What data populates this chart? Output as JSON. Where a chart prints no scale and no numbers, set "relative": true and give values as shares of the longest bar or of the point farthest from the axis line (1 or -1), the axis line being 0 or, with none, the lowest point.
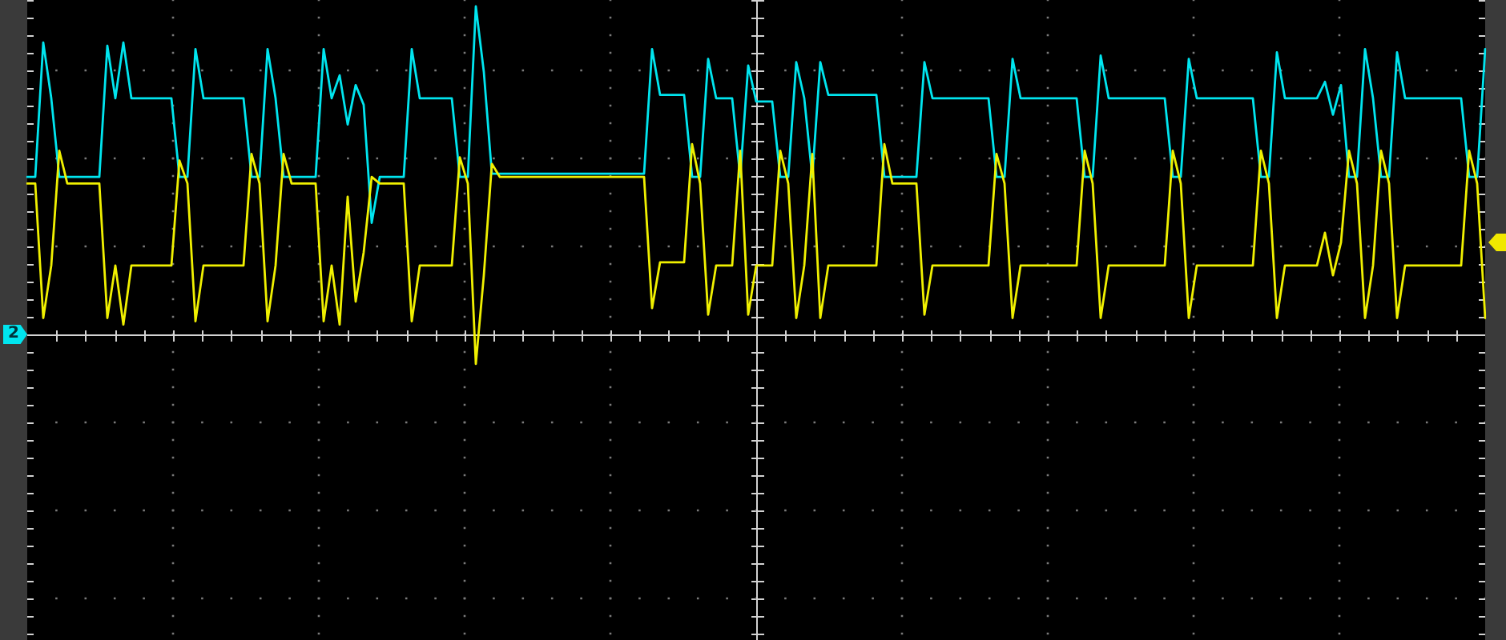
{
  "chart_data": {
    "type": "line",
    "relative": true,
    "grid": true,
    "line_style": "solid",
    "categories": [
      null,
      null,
      null,
      null,
      null,
      null,
      null,
      null,
      null,
      null,
      null,
      null,
      null,
      null,
      null,
      null,
      null,
      null,
      null,
      null,
      null,
      null,
      null,
      null,
      null,
      null,
      null,
      null,
      null,
      null,
      null,
      null,
      null,
      null,
      null,
      null,
      null,
      null,
      null,
      null,
      null,
      null,
      null,
      null,
      null,
      null,
      null,
      null,
      null,
      null,
      null,
      null,
      null,
      null,
      null,
      null,
      null,
      null,
      null,
      null,
      null,
      null,
      null,
      null,
      null,
      null,
      null,
      null,
      null,
      null,
      null,
      null,
      null,
      null,
      null,
      null,
      null,
      null,
      null,
      null,
      null,
      null,
      null,
      null,
      null,
      null,
      null,
      null,
      null,
      null,
      null,
      null,
      null,
      null,
      null,
      null,
      null,
      null,
      null,
      null,
      null,
      null,
      null,
      null,
      null,
      null,
      null,
      null,
      null,
      null,
      null,
      null,
      null,
      null,
      null,
      null,
      null,
      null,
      null,
      null,
      null,
      null,
      null,
      null,
      null,
      null,
      null,
      null,
      null,
      null,
      null,
      null,
      null,
      null,
      null,
      null,
      null,
      null,
      null,
      null,
      null,
      null,
      null,
      null,
      null,
      null,
      null,
      null,
      null,
      null,
      null,
      null,
      null,
      null,
      null,
      null,
      null,
      null,
      null,
      null,
      null,
      null,
      null,
      null,
      null,
      null,
      null,
      null,
      null,
      null,
      null,
      null,
      null,
      null,
      null,
      null,
      null,
      null,
      null,
      null,
      null,
      null,
      null
    ],
    "series": [
      {
        "color": "#00e5ef",
        "values": [
          0.48,
          0.48,
          0.89,
          0.72,
          0.48,
          0.48,
          0.48,
          0.48,
          0.48,
          0.48,
          0.88,
          0.72,
          0.89,
          0.72,
          0.72,
          0.72,
          0.72,
          0.72,
          0.72,
          0.48,
          0.48,
          0.87,
          0.72,
          0.72,
          0.72,
          0.72,
          0.72,
          0.72,
          0.48,
          0.48,
          0.87,
          0.72,
          0.48,
          0.48,
          0.48,
          0.48,
          0.48,
          0.87,
          0.72,
          0.79,
          0.64,
          0.76,
          0.7,
          0.34,
          0.48,
          0.48,
          0.48,
          0.48,
          0.87,
          0.72,
          0.72,
          0.72,
          0.72,
          0.72,
          0.48,
          0.48,
          1,
          0.8,
          0.49,
          0.49,
          0.49,
          0.49,
          0.49,
          0.49,
          0.49,
          0.49,
          0.49,
          0.49,
          0.49,
          0.49,
          0.49,
          0.49,
          0.49,
          0.49,
          0.49,
          0.49,
          0.49,
          0.49,
          0.87,
          0.73,
          0.73,
          0.73,
          0.73,
          0.48,
          0.48,
          0.84,
          0.72,
          0.72,
          0.72,
          0.48,
          0.82,
          0.71,
          0.71,
          0.71,
          0.48,
          0.48,
          0.83,
          0.72,
          0.48,
          0.83,
          0.73,
          0.73,
          0.73,
          0.73,
          0.73,
          0.73,
          0.73,
          0.48,
          0.48,
          0.48,
          0.48,
          0.48,
          0.83,
          0.72,
          0.72,
          0.72,
          0.72,
          0.72,
          0.72,
          0.72,
          0.72,
          0.48,
          0.48,
          0.84,
          0.72,
          0.72,
          0.72,
          0.72,
          0.72,
          0.72,
          0.72,
          0.72,
          0.48,
          0.48,
          0.85,
          0.72,
          0.72,
          0.72,
          0.72,
          0.72,
          0.72,
          0.72,
          0.72,
          0.48,
          0.48,
          0.84,
          0.72,
          0.72,
          0.72,
          0.72,
          0.72,
          0.72,
          0.72,
          0.72,
          0.48,
          0.48,
          0.86,
          0.72,
          0.72,
          0.72,
          0.72,
          0.72,
          0.77,
          0.67,
          0.76,
          0.48,
          0.48,
          0.87,
          0.72,
          0.48,
          0.48,
          0.86,
          0.72,
          0.72,
          0.72,
          0.72,
          0.72,
          0.72,
          0.72,
          0.72,
          0.48,
          0.48,
          0.87
        ]
      },
      {
        "color": "#f0f000",
        "values": [
          0.46,
          0.46,
          0.05,
          0.21,
          0.56,
          0.46,
          0.46,
          0.46,
          0.46,
          0.46,
          0.05,
          0.21,
          0.03,
          0.21,
          0.21,
          0.21,
          0.21,
          0.21,
          0.21,
          0.53,
          0.46,
          0.04,
          0.21,
          0.21,
          0.21,
          0.21,
          0.21,
          0.21,
          0.55,
          0.46,
          0.04,
          0.21,
          0.55,
          0.46,
          0.46,
          0.46,
          0.46,
          0.04,
          0.21,
          0.03,
          0.42,
          0.1,
          0.25,
          0.48,
          0.46,
          0.46,
          0.46,
          0.46,
          0.04,
          0.21,
          0.21,
          0.21,
          0.21,
          0.21,
          0.54,
          0.46,
          -0.09,
          0.18,
          0.52,
          0.48,
          0.48,
          0.48,
          0.48,
          0.48,
          0.48,
          0.48,
          0.48,
          0.48,
          0.48,
          0.48,
          0.48,
          0.48,
          0.48,
          0.48,
          0.48,
          0.48,
          0.48,
          0.48,
          0.08,
          0.22,
          0.22,
          0.22,
          0.22,
          0.58,
          0.46,
          0.06,
          0.21,
          0.21,
          0.21,
          0.56,
          0.06,
          0.21,
          0.21,
          0.21,
          0.56,
          0.46,
          0.05,
          0.21,
          0.55,
          0.05,
          0.21,
          0.21,
          0.21,
          0.21,
          0.21,
          0.21,
          0.21,
          0.58,
          0.46,
          0.46,
          0.46,
          0.46,
          0.06,
          0.21,
          0.21,
          0.21,
          0.21,
          0.21,
          0.21,
          0.21,
          0.21,
          0.55,
          0.46,
          0.05,
          0.21,
          0.21,
          0.21,
          0.21,
          0.21,
          0.21,
          0.21,
          0.21,
          0.56,
          0.46,
          0.05,
          0.21,
          0.21,
          0.21,
          0.21,
          0.21,
          0.21,
          0.21,
          0.21,
          0.56,
          0.46,
          0.05,
          0.21,
          0.21,
          0.21,
          0.21,
          0.21,
          0.21,
          0.21,
          0.21,
          0.56,
          0.46,
          0.05,
          0.21,
          0.21,
          0.21,
          0.21,
          0.21,
          0.31,
          0.18,
          0.28,
          0.56,
          0.46,
          0.05,
          0.21,
          0.56,
          0.46,
          0.05,
          0.21,
          0.21,
          0.21,
          0.21,
          0.21,
          0.21,
          0.21,
          0.21,
          0.56,
          0.46,
          0.05
        ]
      }
    ],
    "annotations": [
      {
        "text": "2",
        "y": 0
      }
    ]
  }
}
